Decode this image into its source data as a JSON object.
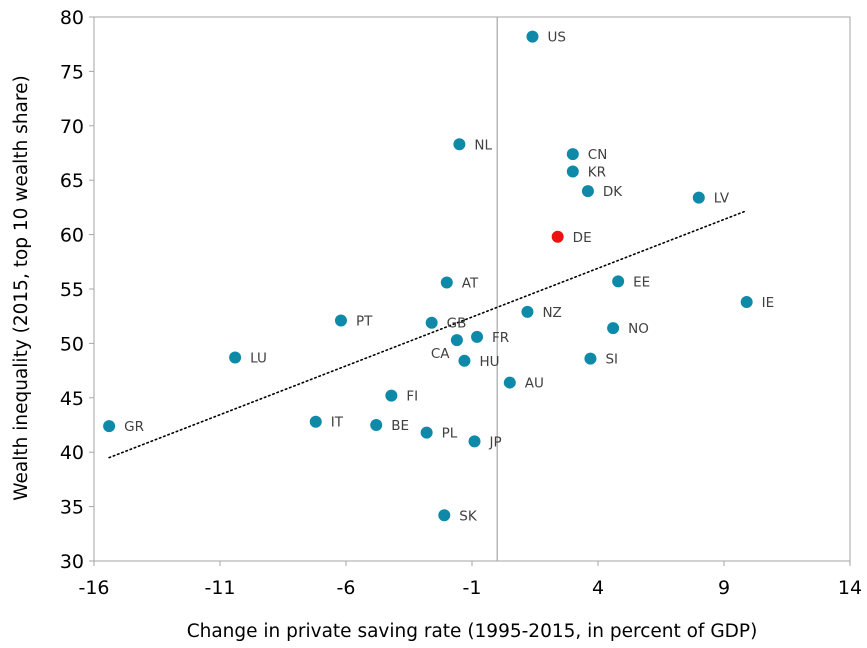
{
  "chart_data": {
    "type": "scatter",
    "title": "",
    "xlabel": "Change in private saving rate (1995-2015, in percent of GDP)",
    "ylabel": "Wealth inequality (2015, top 10 wealth share)",
    "xlim": [
      -16,
      14
    ],
    "ylim": [
      30,
      80
    ],
    "x_ticks": [
      -16,
      -11,
      -6,
      -1,
      4,
      9,
      14
    ],
    "y_ticks": [
      30,
      35,
      40,
      45,
      50,
      55,
      60,
      65,
      70,
      75,
      80
    ],
    "x_tick_labels": [
      "-16",
      "-11",
      "-6",
      "-1",
      "4",
      "9",
      "14"
    ],
    "y_tick_labels": [
      "30",
      "35",
      "40",
      "45",
      "50",
      "55",
      "60",
      "65",
      "70",
      "75",
      "80"
    ],
    "reference_line_x": 0,
    "grid": false,
    "colors": {
      "point": "#0e8aa8",
      "highlight": "#ee1111",
      "trendline": "#000000",
      "axis": "#a6a6a6",
      "label": "#404040"
    },
    "points": [
      {
        "label": "US",
        "x": 1.4,
        "y": 78.2
      },
      {
        "label": "NL",
        "x": -1.5,
        "y": 68.3
      },
      {
        "label": "CN",
        "x": 3.0,
        "y": 67.4
      },
      {
        "label": "KR",
        "x": 3.0,
        "y": 65.8
      },
      {
        "label": "DK",
        "x": 3.6,
        "y": 64.0
      },
      {
        "label": "LV",
        "x": 8.0,
        "y": 63.4
      },
      {
        "label": "DE",
        "x": 2.4,
        "y": 59.8,
        "highlight": true
      },
      {
        "label": "AT",
        "x": -2.0,
        "y": 55.6
      },
      {
        "label": "EE",
        "x": 4.8,
        "y": 55.7
      },
      {
        "label": "IE",
        "x": 9.9,
        "y": 53.8
      },
      {
        "label": "NZ",
        "x": 1.2,
        "y": 52.9
      },
      {
        "label": "PT",
        "x": -6.2,
        "y": 52.1
      },
      {
        "label": "GB",
        "x": -2.6,
        "y": 51.9
      },
      {
        "label": "NO",
        "x": 4.6,
        "y": 51.4
      },
      {
        "label": "FR",
        "x": -0.8,
        "y": 50.6
      },
      {
        "label": "CA",
        "x": -1.6,
        "y": 50.3
      },
      {
        "label": "LU",
        "x": -10.4,
        "y": 48.7
      },
      {
        "label": "SI",
        "x": 3.7,
        "y": 48.6
      },
      {
        "label": "HU",
        "x": -1.3,
        "y": 48.4
      },
      {
        "label": "AU",
        "x": 0.5,
        "y": 46.4
      },
      {
        "label": "FI",
        "x": -4.2,
        "y": 45.2
      },
      {
        "label": "IT",
        "x": -7.2,
        "y": 42.8
      },
      {
        "label": "BE",
        "x": -4.8,
        "y": 42.5
      },
      {
        "label": "GR",
        "x": -15.4,
        "y": 42.4
      },
      {
        "label": "PL",
        "x": -2.8,
        "y": 41.8
      },
      {
        "label": "JP",
        "x": -0.9,
        "y": 41.0
      },
      {
        "label": "SK",
        "x": -2.1,
        "y": 34.2
      }
    ],
    "trendline": {
      "style": "dotted",
      "x": [
        -15.4,
        9.9
      ],
      "y": [
        39.5,
        62.2
      ]
    }
  }
}
